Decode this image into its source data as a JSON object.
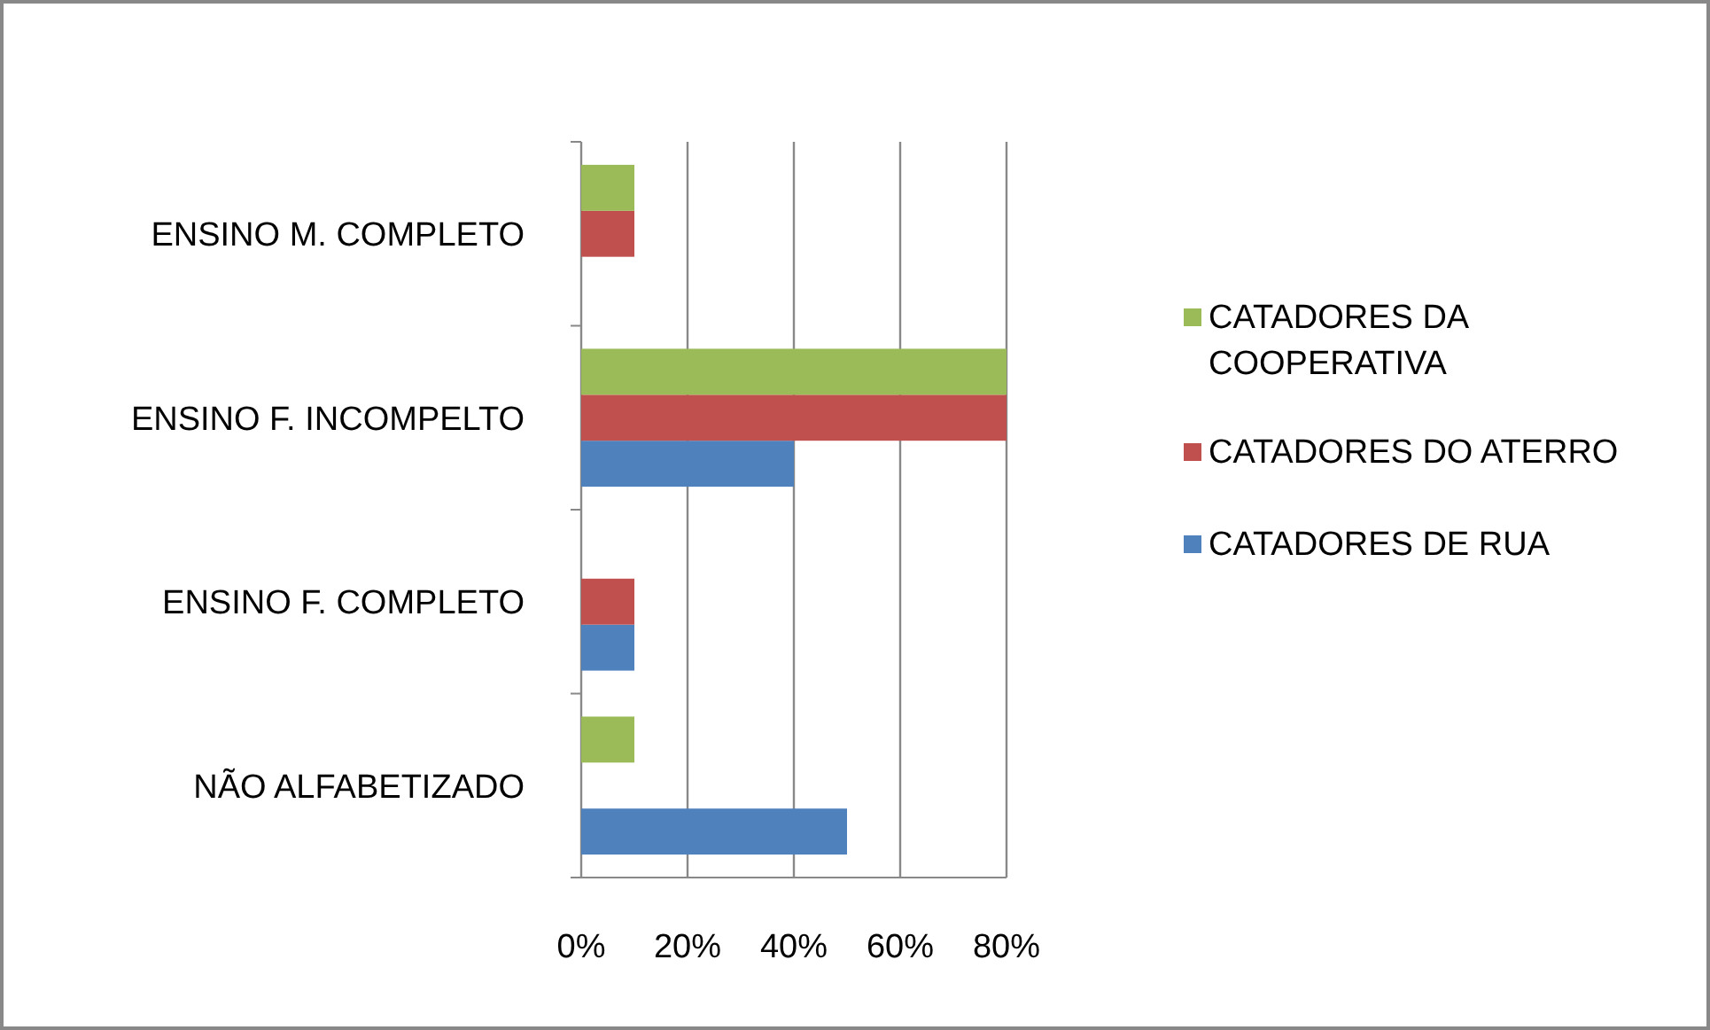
{
  "chart_data": {
    "type": "bar",
    "orientation": "horizontal",
    "categories": [
      "ENSINO M. COMPLETO",
      "ENSINO F. INCOMPELTO",
      "ENSINO F. COMPLETO",
      "NÃO ALFABETIZADO"
    ],
    "series": [
      {
        "name": "CATADORES DE RUA",
        "color": "#4f81bd",
        "values": [
          0,
          40,
          10,
          50
        ]
      },
      {
        "name": "CATADORES DO ATERRO",
        "color": "#c0504d",
        "values": [
          10,
          80,
          10,
          0
        ]
      },
      {
        "name": "CATADORES DA COOPERATIVA",
        "color": "#9bbb59",
        "values": [
          10,
          80,
          0,
          10
        ]
      }
    ],
    "xlim": [
      0,
      80
    ],
    "xticks": [
      {
        "value": 0,
        "label": "0%"
      },
      {
        "value": 20,
        "label": "20%"
      },
      {
        "value": 40,
        "label": "40%"
      },
      {
        "value": 60,
        "label": "60%"
      },
      {
        "value": 80,
        "label": "80%"
      }
    ],
    "grid": "x",
    "legend": "right"
  }
}
